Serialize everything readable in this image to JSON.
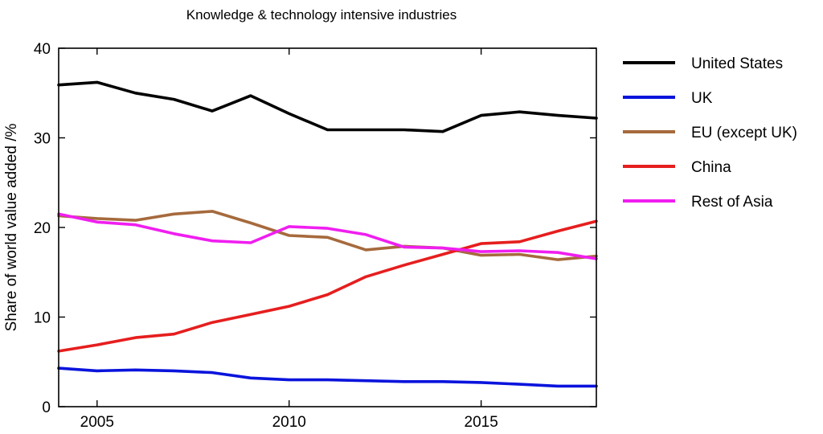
{
  "chart_data": {
    "type": "line",
    "title": "Knowledge & technology intensive industries",
    "ylabel": "Share of world value added /%",
    "xlabel": "",
    "xlim": [
      2004,
      2018
    ],
    "ylim": [
      0,
      40
    ],
    "x_ticks": [
      2005,
      2010,
      2015
    ],
    "y_ticks": [
      0,
      10,
      20,
      30,
      40
    ],
    "grid": false,
    "legend_position": "right",
    "x": [
      2004,
      2005,
      2006,
      2007,
      2008,
      2009,
      2010,
      2011,
      2012,
      2013,
      2014,
      2015,
      2016,
      2017,
      2018
    ],
    "series": [
      {
        "name": "United States",
        "color": "#000000",
        "values": [
          35.9,
          36.2,
          35.0,
          34.3,
          33.0,
          34.7,
          32.7,
          30.9,
          30.9,
          30.9,
          30.7,
          32.5,
          32.9,
          32.5,
          32.2
        ]
      },
      {
        "name": "UK",
        "color": "#0a14dc",
        "values": [
          4.3,
          4.0,
          4.1,
          4.0,
          3.8,
          3.2,
          3.0,
          3.0,
          2.9,
          2.8,
          2.8,
          2.7,
          2.5,
          2.3,
          2.3
        ]
      },
      {
        "name": "EU (except UK)",
        "color": "#a66a3d",
        "values": [
          21.3,
          21.0,
          20.8,
          21.5,
          21.8,
          20.5,
          19.1,
          18.9,
          17.5,
          17.9,
          17.7,
          16.9,
          17.0,
          16.4,
          16.8
        ]
      },
      {
        "name": "China",
        "color": "#e61e1e",
        "values": [
          6.2,
          6.9,
          7.7,
          8.1,
          9.4,
          10.3,
          11.2,
          12.5,
          14.5,
          15.8,
          17.0,
          18.2,
          18.4,
          19.6,
          20.7
        ]
      },
      {
        "name": "Rest of Asia",
        "color": "#f01ef0",
        "values": [
          21.5,
          20.6,
          20.3,
          19.3,
          18.5,
          18.3,
          20.1,
          19.9,
          19.2,
          17.8,
          17.7,
          17.3,
          17.4,
          17.2,
          16.5
        ]
      }
    ]
  }
}
